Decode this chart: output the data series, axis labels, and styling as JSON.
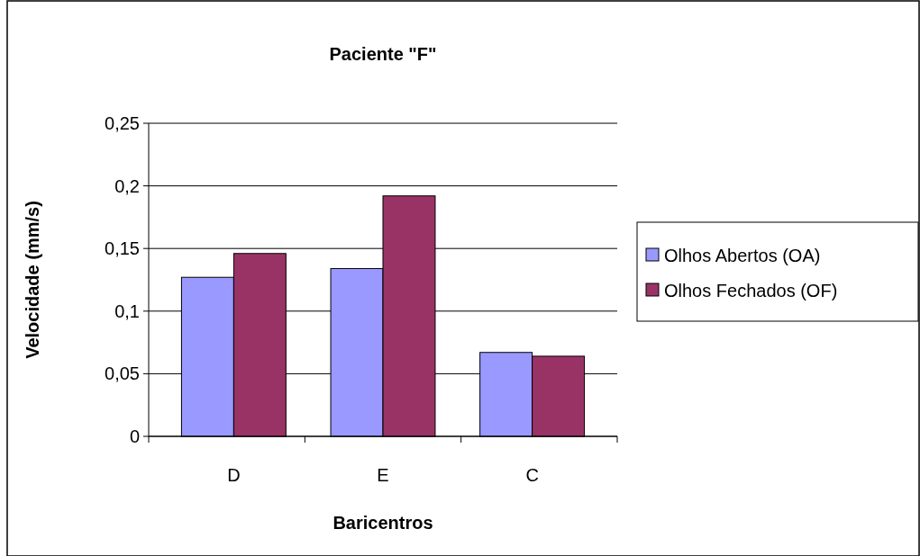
{
  "chart_data": {
    "type": "bar",
    "title": "Paciente \"F\"",
    "xlabel": "Baricentros",
    "ylabel": "Velocidade (mm/s)",
    "categories": [
      "D",
      "E",
      "C"
    ],
    "series": [
      {
        "name": "Olhos Abertos (OA)",
        "color": "#9999ff",
        "values": [
          0.127,
          0.134,
          0.067
        ]
      },
      {
        "name": "Olhos Fechados (OF)",
        "color": "#993366",
        "values": [
          0.146,
          0.192,
          0.064
        ]
      }
    ],
    "ylim": [
      0,
      0.25
    ],
    "yticks": [
      0,
      {
        "value": 0.05,
        "label": "0,05"
      },
      {
        "value": 0.1,
        "label": "0,1"
      },
      {
        "value": 0.15,
        "label": "0,15"
      },
      {
        "value": 0.2,
        "label": "0,2"
      },
      {
        "value": 0.25,
        "label": "0,25"
      }
    ],
    "grid": "y",
    "legend": "right"
  }
}
